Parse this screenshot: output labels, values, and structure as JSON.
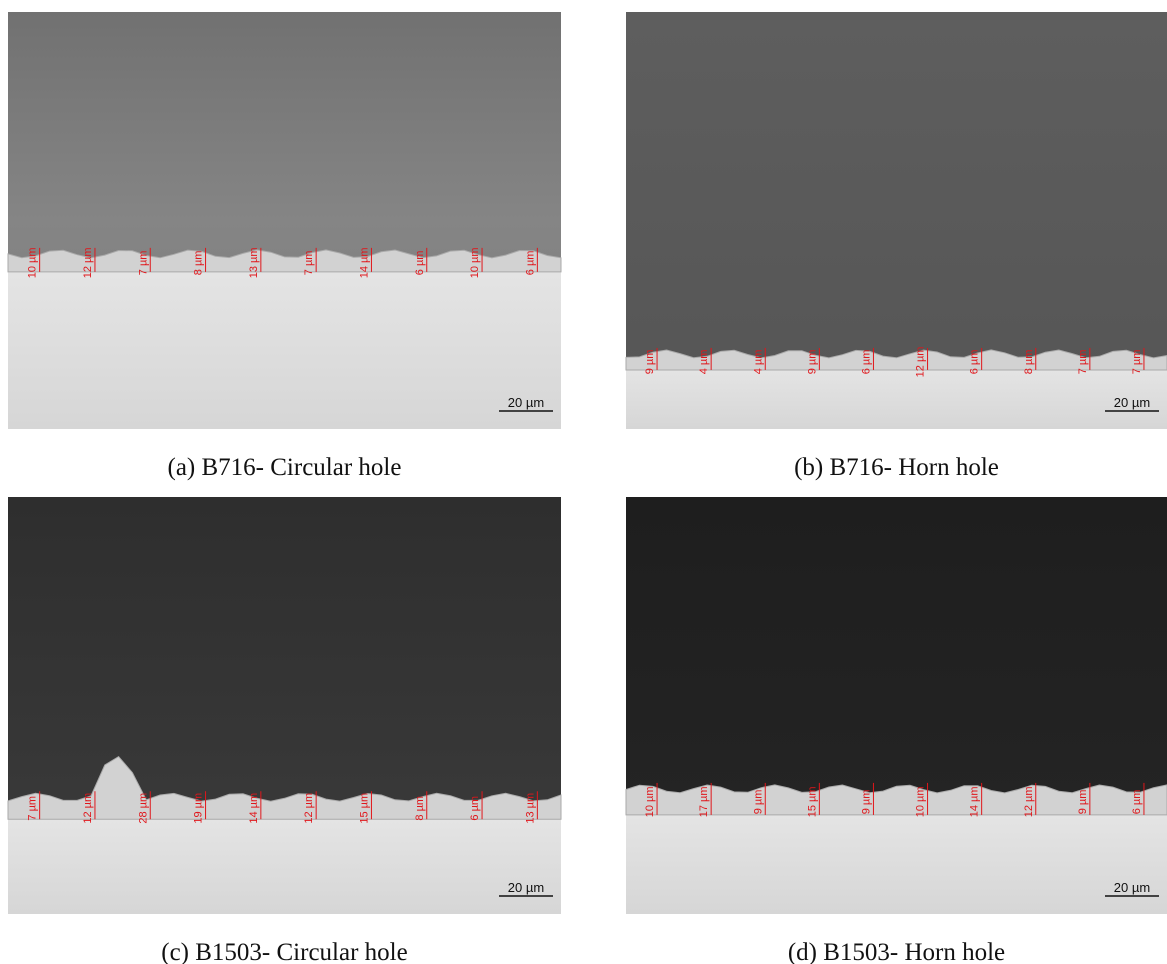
{
  "panels": [
    {
      "caption": "(a) B716- Circular hole",
      "scale_bar": "20 µm",
      "measurements": [
        "10 µm",
        "12 µm",
        "7 µm",
        "8 µm",
        "13 µm",
        "7 µm",
        "14 µm",
        "6 µm",
        "10 µm",
        "6 µm"
      ]
    },
    {
      "caption": "(b) B716- Horn hole",
      "scale_bar": "20 µm",
      "measurements": [
        "9 µm",
        "4 µm",
        "4 µm",
        "9 µm",
        "6 µm",
        "12 µm",
        "6 µm",
        "8 µm",
        "7 µm",
        "7 µm"
      ]
    },
    {
      "caption": "(c) B1503- Circular hole",
      "scale_bar": "20 µm",
      "measurements": [
        "7 µm",
        "12 µm",
        "28 µm",
        "19 µm",
        "14 µm",
        "12 µm",
        "15 µm",
        "8 µm",
        "6 µm",
        "13 µm"
      ]
    },
    {
      "caption": "(d) B1503- Horn hole",
      "scale_bar": "20 µm",
      "measurements": [
        "10 µm",
        "17 µm",
        "9 µm",
        "15 µm",
        "9 µm",
        "10 µm",
        "14 µm",
        "12 µm",
        "9 µm",
        "6 µm"
      ]
    }
  ]
}
